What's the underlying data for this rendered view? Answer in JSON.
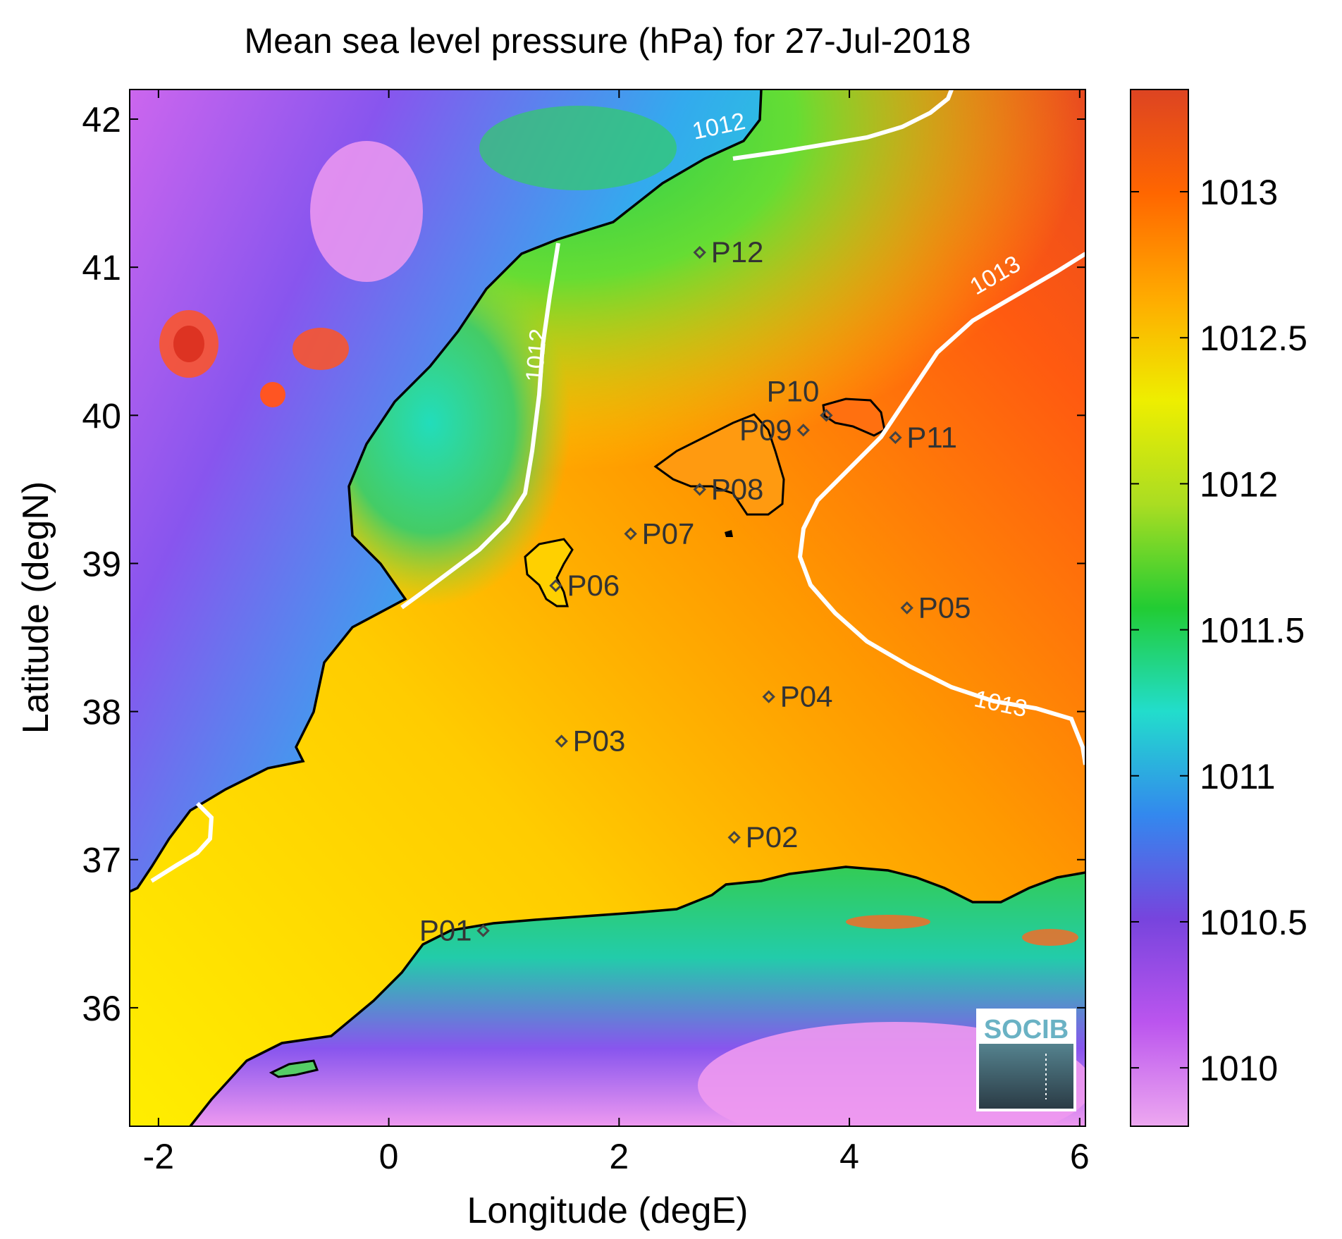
{
  "title": "Mean sea level pressure (hPa) for 27-Jul-2018",
  "xlabel": "Longitude (degE)",
  "ylabel": "Latitude (degN)",
  "map": {
    "xlim": [
      -2.25,
      6.05
    ],
    "ylim": [
      35.2,
      42.2
    ],
    "xticks": [
      -2,
      0,
      2,
      4,
      6
    ],
    "xtick_labels": [
      "-2",
      "0",
      "2",
      "4",
      "6"
    ],
    "yticks": [
      36,
      37,
      38,
      39,
      40,
      41,
      42
    ],
    "ytick_labels": [
      "36",
      "37",
      "38",
      "39",
      "40",
      "41",
      "42"
    ]
  },
  "colorbar": {
    "range": [
      1009.8,
      1013.35
    ],
    "ticks": [
      1010,
      1010.5,
      1011,
      1011.5,
      1012,
      1012.5,
      1013
    ],
    "tick_labels": [
      "1010",
      "1010.5",
      "1011",
      "1011.5",
      "1012",
      "1012.5",
      "1013"
    ],
    "colors": [
      "#eda8f0",
      "#bb55ee",
      "#7744dd",
      "#3388ee",
      "#22ddcc",
      "#22cc33",
      "#aadd22",
      "#eeee00",
      "#ffaa00",
      "#ff6600",
      "#dd4422"
    ]
  },
  "contour_labels": [
    {
      "text": "1012",
      "lon": 1.35,
      "lat": 40.4
    },
    {
      "text": "1012",
      "lon": 2.88,
      "lat": 41.9
    },
    {
      "text": "1013",
      "lon": 5.3,
      "lat": 40.9
    },
    {
      "text": "1013",
      "lon": 5.3,
      "lat": 38.0
    }
  ],
  "points": [
    {
      "name": "P01",
      "lon": 0.82,
      "lat": 36.52
    },
    {
      "name": "P02",
      "lon": 3.0,
      "lat": 37.15
    },
    {
      "name": "P03",
      "lon": 1.5,
      "lat": 37.8
    },
    {
      "name": "P04",
      "lon": 3.3,
      "lat": 38.1
    },
    {
      "name": "P05",
      "lon": 4.5,
      "lat": 38.7
    },
    {
      "name": "P06",
      "lon": 1.45,
      "lat": 38.85
    },
    {
      "name": "P07",
      "lon": 2.1,
      "lat": 39.2
    },
    {
      "name": "P08",
      "lon": 2.7,
      "lat": 39.5
    },
    {
      "name": "P09",
      "lon": 3.6,
      "lat": 39.9
    },
    {
      "name": "P10",
      "lon": 3.8,
      "lat": 40.0
    },
    {
      "name": "P11",
      "lon": 4.4,
      "lat": 39.85
    },
    {
      "name": "P12",
      "lon": 2.7,
      "lat": 41.1
    }
  ],
  "logo": {
    "text": "SOCIB"
  }
}
